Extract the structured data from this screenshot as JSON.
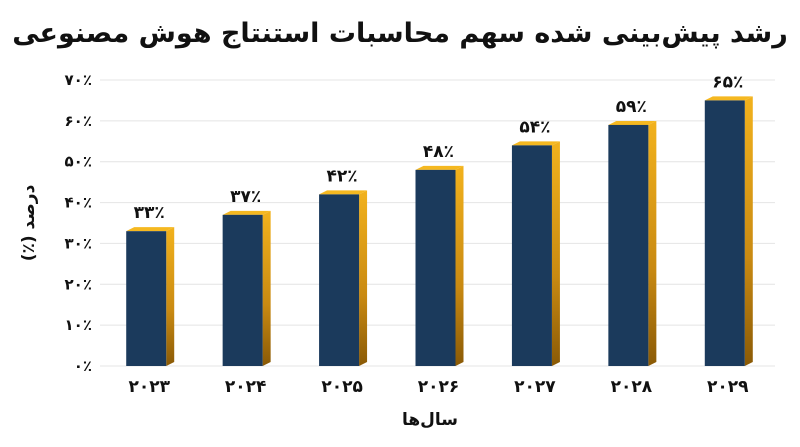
{
  "chart_data": {
    "type": "bar",
    "title": "رشد پیش‌بینی شده سهم محاسبات استنتاج هوش مصنوعی",
    "xlabel": "سال‌ها",
    "ylabel": "درصد (٪)",
    "categories": [
      "۲۰۲۳",
      "۲۰۲۴",
      "۲۰۲۵",
      "۲۰۲۶",
      "۲۰۲۷",
      "۲۰۲۸",
      "۲۰۲۹"
    ],
    "values": [
      33,
      37,
      42,
      48,
      54,
      59,
      65
    ],
    "data_labels": [
      "۳۳٪",
      "۳۷٪",
      "۴۲٪",
      "۴۸٪",
      "۵۴٪",
      "۵۹٪",
      "۶۵٪"
    ],
    "yticks": [
      0,
      10,
      20,
      30,
      40,
      50,
      60,
      70
    ],
    "ytick_labels": [
      "۰٪",
      "۱۰٪",
      "۲۰٪",
      "۳۰٪",
      "۴۰٪",
      "۵۰٪",
      "۶۰٪",
      "۷۰٪"
    ],
    "ylim": [
      0,
      70
    ],
    "grid": true,
    "colors": {
      "bar_front": "#1b3a5c",
      "bar_side": "#c98a12",
      "bar_top": "#f5b820",
      "grid": "#e4e4e4",
      "text": "#111111"
    }
  }
}
